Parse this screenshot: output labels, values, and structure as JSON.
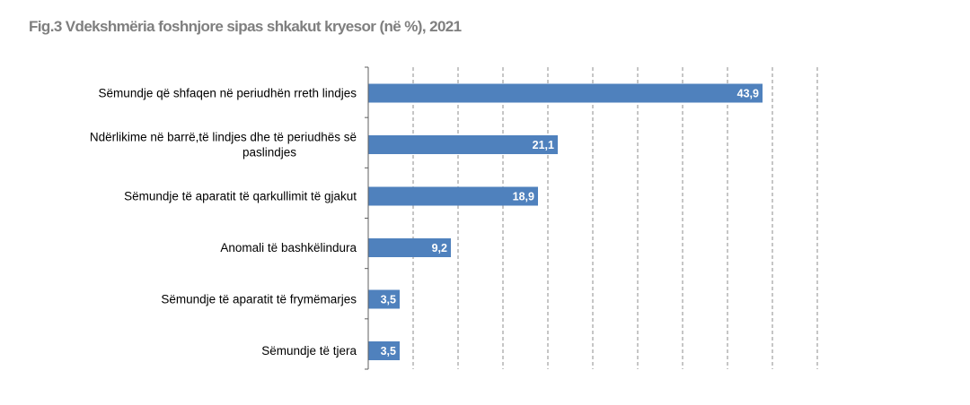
{
  "title": "Fig.3 Vdekshmëria foshnjore sipas shkakut kryesor (në %),  2021",
  "colors": {
    "bar": "#4f81bd",
    "title": "#7f7f7f",
    "grid": "#8c8c8c"
  },
  "chart_data": {
    "type": "bar",
    "orientation": "horizontal",
    "title": "Fig.3 Vdekshmëria foshnjore sipas shkakut kryesor (në %),  2021",
    "categories": [
      [
        "Sëmundje që shfaqen në periudhën rreth lindjes"
      ],
      [
        "Ndërlikime në barrë,të lindjes dhe të periudhës së",
        "paslindjes"
      ],
      [
        "Sëmundje të aparatit të qarkullimit të gjakut"
      ],
      [
        "Anomali të bashkëlindura"
      ],
      [
        "Sëmundje të aparatit të frymëmarjes"
      ],
      [
        "Sëmundje të tjera"
      ]
    ],
    "values": [
      43.9,
      21.1,
      18.9,
      9.2,
      3.5,
      3.5
    ],
    "value_labels": [
      "43,9",
      "21,1",
      "18,9",
      "9,2",
      "3,5",
      "3,5"
    ],
    "xlim": [
      0,
      50
    ],
    "grid": true,
    "grid_style": "dashed-vertical",
    "xlabel": "",
    "ylabel": ""
  }
}
